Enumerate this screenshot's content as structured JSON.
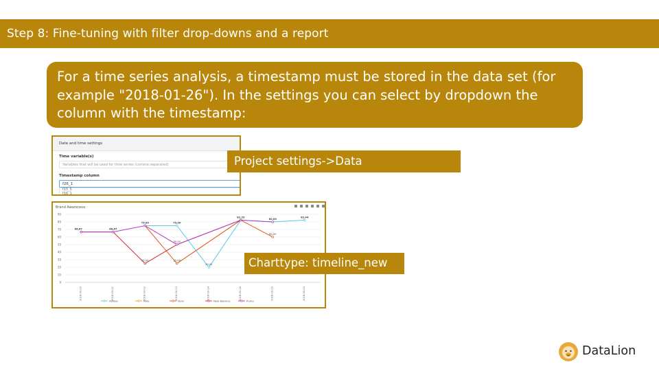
{
  "slide": {
    "title": "Step 8: Fine-tuning with filter drop-downs and a report",
    "callout_text": "For a time series analysis, a timestamp must be stored in the data set (for example \"2018-01-26\"). In the settings you can select by dropdown  the column with the timestamp:",
    "label_project_settings": "Project settings->Data",
    "label_charttype": "Charttype: timeline_new",
    "logo_text": "DataLion",
    "accent_color": "#b8860b"
  },
  "settings_panel": {
    "header": "Date and time settings",
    "time_variables_label": "Time variable(s)",
    "time_variables_placeholder": "Variables that will be used for time series (comma separated)",
    "timestamp_column_label": "Timestamp column",
    "timestamp_column_value": "f26_1",
    "dropdown_option_1": "f15_5",
    "dropdown_option_2": "f16_1"
  },
  "chart_data": {
    "type": "line",
    "title": "Brand Awareness",
    "toolbar_icons": [
      "table-icon",
      "edit-icon",
      "settings-icon",
      "zoom-icon",
      "download-icon",
      "close-icon"
    ],
    "x": [
      "2018-09-10",
      "2018-09-11",
      "2018-09-12",
      "2018-09-13",
      "2018-09-14",
      "2018-09-18",
      "2018-09-19",
      "2018-09-20"
    ],
    "ylim": [
      0,
      90
    ],
    "yticks": [
      0,
      10,
      20,
      30,
      40,
      50,
      60,
      70,
      80,
      90
    ],
    "grid": true,
    "legend_position": "bottom",
    "series": [
      {
        "name": "Adidas",
        "color": "#5bc8e8",
        "values": [
          null,
          null,
          75,
          75,
          20,
          82.33,
          80,
          82.44
        ]
      },
      {
        "name": "Nike",
        "color": "#f0a030",
        "values": [
          null,
          null,
          null,
          25,
          null,
          82.33,
          null,
          null
        ]
      },
      {
        "name": "Vans",
        "color": "#e05a20",
        "values": [
          null,
          null,
          75,
          25,
          null,
          82.33,
          60,
          null
        ]
      },
      {
        "name": "New Balance",
        "color": "#d03030",
        "values": [
          66.67,
          66.67,
          25,
          50,
          null,
          82.33,
          null,
          null
        ]
      },
      {
        "name": "Puma",
        "color": "#b03cc0",
        "values": [
          66.67,
          66.67,
          75,
          50,
          null,
          82.33,
          80,
          null
        ]
      }
    ],
    "data_labels": [
      {
        "x": "2018-09-10",
        "text": "66,67"
      },
      {
        "x": "2018-09-11",
        "text": "66,67"
      },
      {
        "x": "2018-09-12",
        "text": "75,00"
      },
      {
        "x": "2018-09-12",
        "text": "25,00"
      },
      {
        "x": "2018-09-13",
        "text": "75,00"
      },
      {
        "x": "2018-09-13",
        "text": "50,00"
      },
      {
        "x": "2018-09-13",
        "text": "25,00"
      },
      {
        "x": "2018-09-14",
        "text": "20,00"
      },
      {
        "x": "2018-09-18",
        "text": "82,33"
      },
      {
        "x": "2018-09-19",
        "text": "80,00"
      },
      {
        "x": "2018-09-19",
        "text": "60,00"
      },
      {
        "x": "2018-09-20",
        "text": "82,44"
      }
    ]
  }
}
